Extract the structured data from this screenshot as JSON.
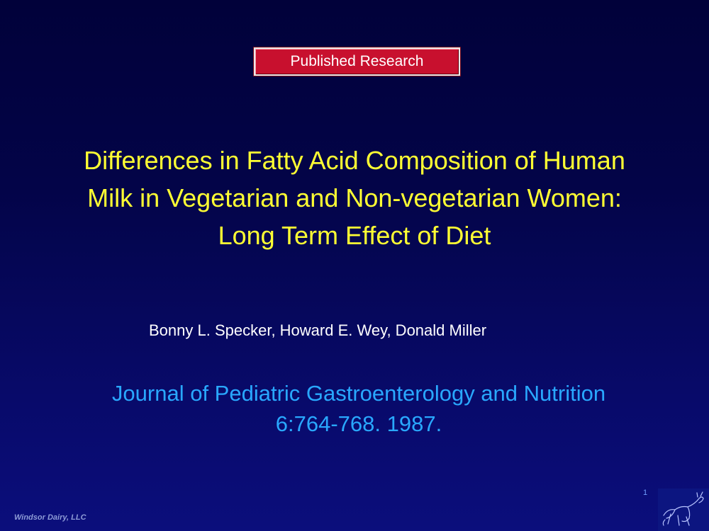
{
  "slide": {
    "badge_label": "Published Research",
    "title_lines": [
      "Differences in Fatty Acid Composition of Human",
      "Milk in Vegetarian and Non-vegetarian Women:",
      "Long Term Effect of Diet"
    ],
    "authors": "Bonny L. Specker, Howard E. Wey, Donald Miller",
    "journal_lines": [
      "Journal of Pediatric Gastroenterology and Nutrition",
      "6:764-768. 1987."
    ],
    "page_number": "1",
    "footer": "Windsor Dairy, LLC",
    "logo_icon": "cow-sketch-icon"
  },
  "colors": {
    "background_top": "#01013a",
    "background_bottom": "#0b0e7c",
    "badge": "#c8102e",
    "title": "#ffff33",
    "authors": "#ffffff",
    "journal": "#29a8ff"
  }
}
